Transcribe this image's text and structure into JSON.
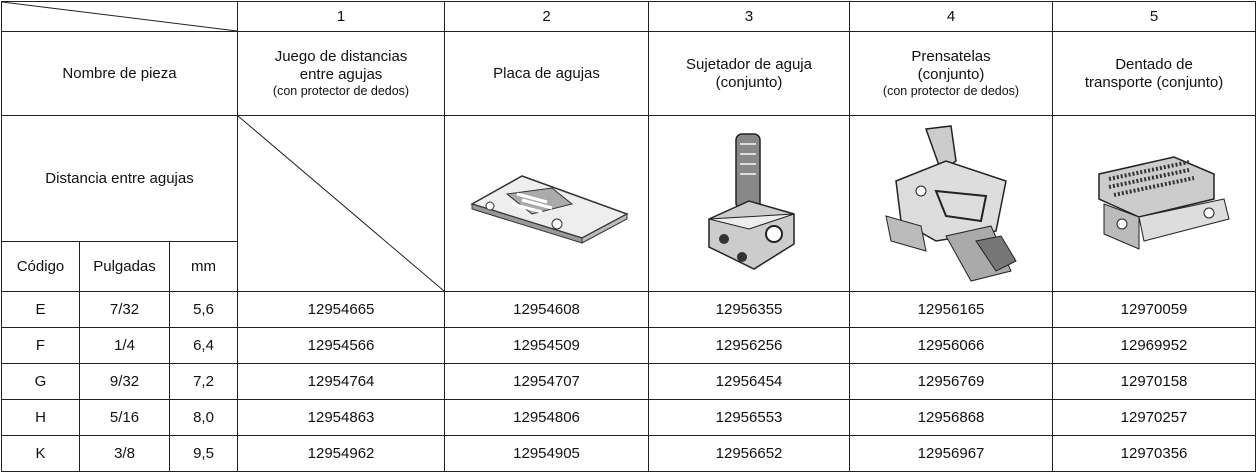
{
  "table": {
    "column_numbers": [
      "1",
      "2",
      "3",
      "4",
      "5"
    ],
    "part_name_label": "Nombre de pieza",
    "part_names": [
      {
        "lines": [
          "Juego de distancias",
          "entre agujas"
        ],
        "note": "(con protector de dedos)"
      },
      {
        "lines": [
          "Placa de agujas"
        ]
      },
      {
        "lines": [
          "Sujetador de aguja",
          "(conjunto)"
        ]
      },
      {
        "lines": [
          "Prensatelas",
          "(conjunto)"
        ],
        "note": "(con protector de dedos)"
      },
      {
        "lines": [
          "Dentado de",
          "transporte (conjunto)"
        ]
      }
    ],
    "distance_label": "Distancia entre agujas",
    "sub_headers": [
      "Código",
      "Pulgadas",
      "mm"
    ],
    "rows": [
      [
        "E",
        "7/32",
        "5,6",
        "12954665",
        "12954608",
        "12956355",
        "12956165",
        "12970059"
      ],
      [
        "F",
        "1/4",
        "6,4",
        "12954566",
        "12954509",
        "12956256",
        "12956066",
        "12969952"
      ],
      [
        "G",
        "9/32",
        "7,2",
        "12954764",
        "12954707",
        "12956454",
        "12956769",
        "12970158"
      ],
      [
        "H",
        "5/16",
        "8,0",
        "12954863",
        "12954806",
        "12956553",
        "12956868",
        "12970257"
      ],
      [
        "K",
        "3/8",
        "9,5",
        "12954962",
        "12954905",
        "12956652",
        "12956967",
        "12970356"
      ]
    ]
  }
}
